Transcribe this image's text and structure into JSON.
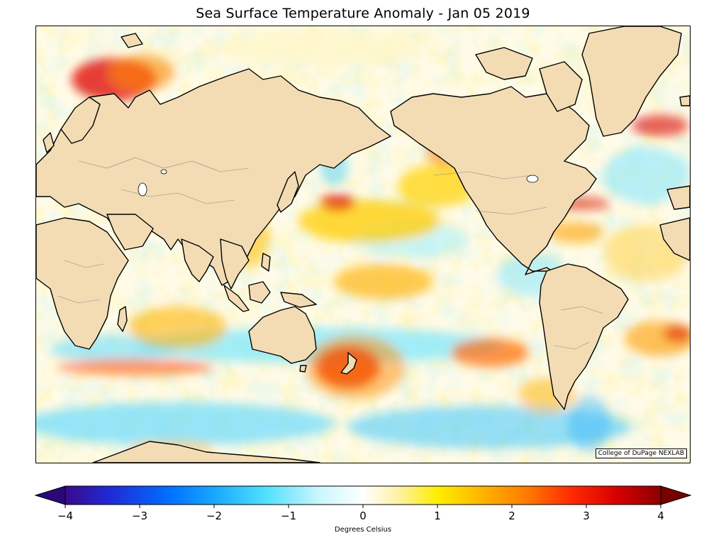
{
  "title": "Sea Surface Temperature Anomaly - Jan 05 2019",
  "credit": "College of DuPage NEXLAB",
  "colorbar": {
    "label": "Degrees Celsius",
    "min": -4,
    "max": 4,
    "ticks": [
      "−4",
      "−3",
      "−2",
      "−1",
      "0",
      "1",
      "2",
      "3",
      "4"
    ],
    "tick_values": [
      -4,
      -3,
      -2,
      -1,
      0,
      1,
      2,
      3,
      4
    ],
    "stops": [
      {
        "v": -4,
        "color": "#3a0a8c"
      },
      {
        "v": -3.4,
        "color": "#1f2ad6"
      },
      {
        "v": -2.6,
        "color": "#0070ff"
      },
      {
        "v": -2,
        "color": "#18a8ff"
      },
      {
        "v": -1.3,
        "color": "#52e0ff"
      },
      {
        "v": -0.6,
        "color": "#c8f6ff"
      },
      {
        "v": 0,
        "color": "#ffffff"
      },
      {
        "v": 0.5,
        "color": "#fff0a0"
      },
      {
        "v": 1,
        "color": "#ffee00"
      },
      {
        "v": 1.6,
        "color": "#ffb400"
      },
      {
        "v": 2.2,
        "color": "#ff7a00"
      },
      {
        "v": 2.8,
        "color": "#ff2a00"
      },
      {
        "v": 3.4,
        "color": "#d80000"
      },
      {
        "v": 4,
        "color": "#8b0000"
      }
    ]
  },
  "colors": {
    "land": "#f3dcb4",
    "coast": "#000000",
    "border": "#8a8a8a"
  }
}
